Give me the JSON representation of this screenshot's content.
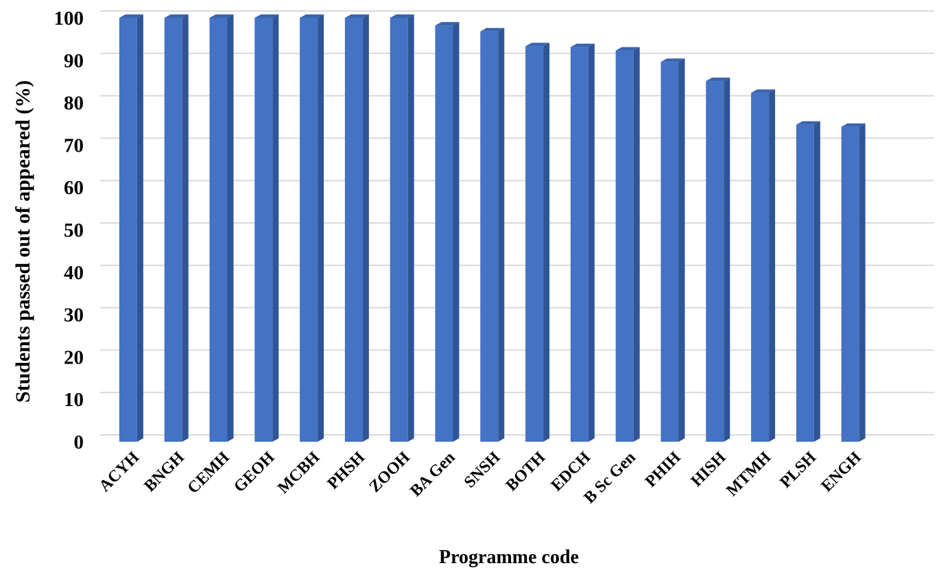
{
  "chart_data": {
    "type": "bar",
    "title": "",
    "xlabel": "Programme code",
    "ylabel": "Students passed out of appeared (%)",
    "ylim": [
      0,
      100
    ],
    "yticks": [
      0,
      10,
      20,
      30,
      40,
      50,
      60,
      70,
      80,
      90,
      100
    ],
    "grid": true,
    "legend": "none",
    "bar_color": "#4472C4",
    "categories": [
      "ACYH",
      "BNGH",
      "CEMH",
      "GEOH",
      "MCBH",
      "PHSH",
      "ZOOH",
      "BA Gen",
      "SNSH",
      "BOTH",
      "EDCH",
      "B Sc Gen",
      "PHIH",
      "HISH",
      "MTMH",
      "PLSH",
      "ENGH"
    ],
    "values": [
      100,
      100,
      100,
      100,
      100,
      100,
      100,
      98.2,
      96.8,
      93.3,
      93.1,
      92.3,
      89.6,
      85.1,
      82.3,
      74.8,
      74.3
    ]
  }
}
